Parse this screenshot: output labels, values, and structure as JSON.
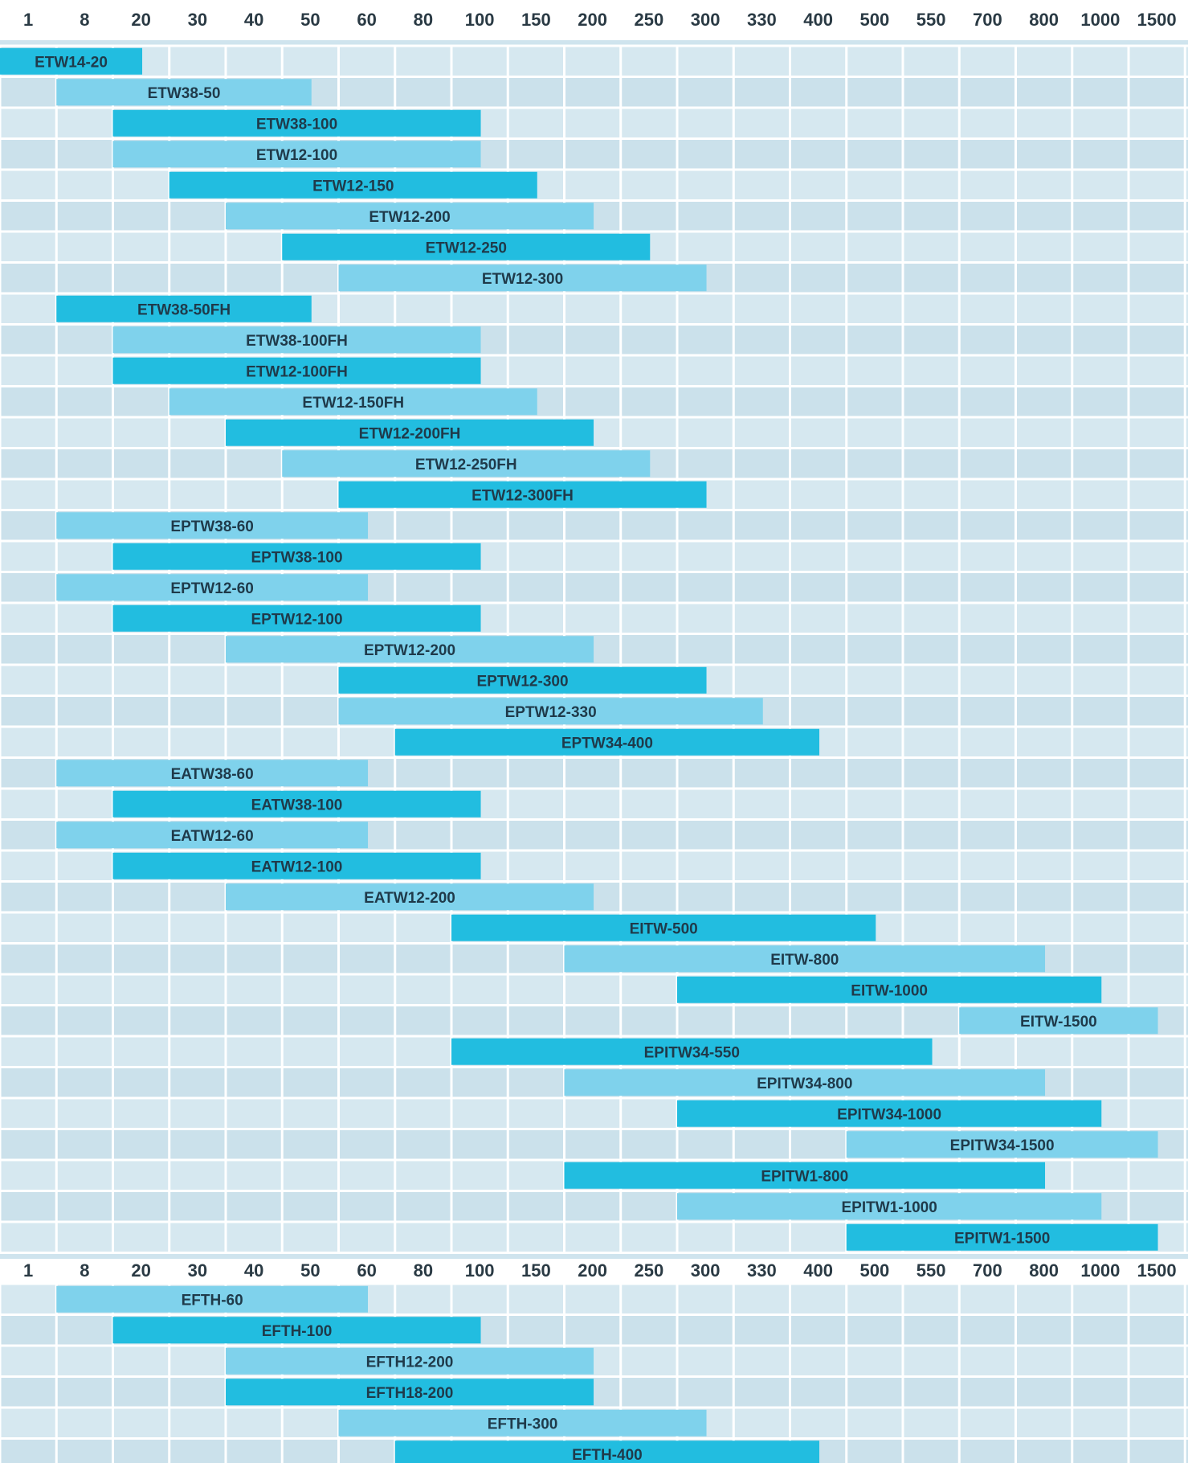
{
  "chart_data": [
    {
      "type": "bar",
      "subtype": "range-bar",
      "x_scale": "categorical-steps",
      "ticks": [
        "1",
        "8",
        "20",
        "30",
        "40",
        "50",
        "60",
        "80",
        "100",
        "150",
        "200",
        "250",
        "300",
        "330",
        "400",
        "500",
        "550",
        "700",
        "800",
        "1000",
        "1500"
      ],
      "grid": true,
      "colors": {
        "dark": "#22bde0",
        "light": "#7fd2ec",
        "grid": "#ffffff",
        "background": "#cfe4ee"
      },
      "bars": [
        {
          "label": "ETW14-20",
          "start": "1",
          "end": "20",
          "shade": "dark"
        },
        {
          "label": "ETW38-50",
          "start": "8",
          "end": "50",
          "shade": "light"
        },
        {
          "label": "ETW38-100",
          "start": "20",
          "end": "100",
          "shade": "dark"
        },
        {
          "label": "ETW12-100",
          "start": "20",
          "end": "100",
          "shade": "light"
        },
        {
          "label": "ETW12-150",
          "start": "30",
          "end": "150",
          "shade": "dark"
        },
        {
          "label": "ETW12-200",
          "start": "40",
          "end": "200",
          "shade": "light"
        },
        {
          "label": "ETW12-250",
          "start": "50",
          "end": "250",
          "shade": "dark"
        },
        {
          "label": "ETW12-300",
          "start": "60",
          "end": "300",
          "shade": "light"
        },
        {
          "label": "ETW38-50FH",
          "start": "8",
          "end": "50",
          "shade": "dark"
        },
        {
          "label": "ETW38-100FH",
          "start": "20",
          "end": "100",
          "shade": "light"
        },
        {
          "label": "ETW12-100FH",
          "start": "20",
          "end": "100",
          "shade": "dark"
        },
        {
          "label": "ETW12-150FH",
          "start": "30",
          "end": "150",
          "shade": "light"
        },
        {
          "label": "ETW12-200FH",
          "start": "40",
          "end": "200",
          "shade": "dark"
        },
        {
          "label": "ETW12-250FH",
          "start": "50",
          "end": "250",
          "shade": "light"
        },
        {
          "label": "ETW12-300FH",
          "start": "60",
          "end": "300",
          "shade": "dark"
        },
        {
          "label": "EPTW38-60",
          "start": "8",
          "end": "60",
          "shade": "light"
        },
        {
          "label": "EPTW38-100",
          "start": "20",
          "end": "100",
          "shade": "dark"
        },
        {
          "label": "EPTW12-60",
          "start": "8",
          "end": "60",
          "shade": "light"
        },
        {
          "label": "EPTW12-100",
          "start": "20",
          "end": "100",
          "shade": "dark"
        },
        {
          "label": "EPTW12-200",
          "start": "40",
          "end": "200",
          "shade": "light"
        },
        {
          "label": "EPTW12-300",
          "start": "60",
          "end": "300",
          "shade": "dark"
        },
        {
          "label": "EPTW12-330",
          "start": "60",
          "end": "330",
          "shade": "light"
        },
        {
          "label": "EPTW34-400",
          "start": "80",
          "end": "400",
          "shade": "dark"
        },
        {
          "label": "EATW38-60",
          "start": "8",
          "end": "60",
          "shade": "light"
        },
        {
          "label": "EATW38-100",
          "start": "20",
          "end": "100",
          "shade": "dark"
        },
        {
          "label": "EATW12-60",
          "start": "8",
          "end": "60",
          "shade": "light"
        },
        {
          "label": "EATW12-100",
          "start": "20",
          "end": "100",
          "shade": "dark"
        },
        {
          "label": "EATW12-200",
          "start": "40",
          "end": "200",
          "shade": "light"
        },
        {
          "label": "EITW-500",
          "start": "100",
          "end": "500",
          "shade": "dark"
        },
        {
          "label": "EITW-800",
          "start": "200",
          "end": "800",
          "shade": "light"
        },
        {
          "label": "EITW-1000",
          "start": "300",
          "end": "1000",
          "shade": "dark"
        },
        {
          "label": "EITW-1500",
          "start": "700",
          "end": "1500",
          "shade": "light"
        },
        {
          "label": "EPITW34-550",
          "start": "100",
          "end": "550",
          "shade": "dark"
        },
        {
          "label": "EPITW34-800",
          "start": "200",
          "end": "800",
          "shade": "light"
        },
        {
          "label": "EPITW34-1000",
          "start": "300",
          "end": "1000",
          "shade": "dark"
        },
        {
          "label": "EPITW34-1500",
          "start": "500",
          "end": "1500",
          "shade": "light"
        },
        {
          "label": "EPITW1-800",
          "start": "200",
          "end": "800",
          "shade": "dark"
        },
        {
          "label": "EPITW1-1000",
          "start": "300",
          "end": "1000",
          "shade": "light"
        },
        {
          "label": "EPITW1-1500",
          "start": "500",
          "end": "1500",
          "shade": "dark"
        }
      ]
    },
    {
      "type": "bar",
      "subtype": "range-bar",
      "x_scale": "categorical-steps",
      "ticks": [
        "1",
        "8",
        "20",
        "30",
        "40",
        "50",
        "60",
        "80",
        "100",
        "150",
        "200",
        "250",
        "300",
        "330",
        "400",
        "500",
        "550",
        "700",
        "800",
        "1000",
        "1500"
      ],
      "grid": true,
      "bars": [
        {
          "label": "EFTH-60",
          "start": "8",
          "end": "60",
          "shade": "light"
        },
        {
          "label": "EFTH-100",
          "start": "20",
          "end": "100",
          "shade": "dark"
        },
        {
          "label": "EFTH12-200",
          "start": "40",
          "end": "200",
          "shade": "light"
        },
        {
          "label": "EFTH18-200",
          "start": "40",
          "end": "200",
          "shade": "dark"
        },
        {
          "label": "EFTH-300",
          "start": "60",
          "end": "300",
          "shade": "light"
        },
        {
          "label": "EFTH-400",
          "start": "80",
          "end": "400",
          "shade": "dark"
        }
      ]
    }
  ]
}
